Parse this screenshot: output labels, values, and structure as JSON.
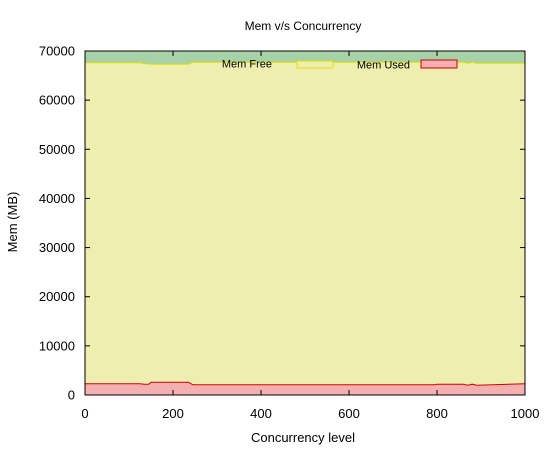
{
  "chart_data": {
    "type": "area",
    "title": "Mem v/s Concurrency",
    "xlabel": "Concurrency level",
    "ylabel": "Mem (MB)",
    "xlim": [
      0,
      1000
    ],
    "ylim": [
      0,
      70000
    ],
    "x_ticks": [
      "0",
      "200",
      "400",
      "600",
      "800",
      "1000"
    ],
    "y_ticks": [
      "0",
      "10000",
      "20000",
      "30000",
      "40000",
      "50000",
      "60000",
      "70000"
    ],
    "legend_position": "top-right",
    "grid": false,
    "colors": {
      "total_fill": "#a7d1a7",
      "free_fill": "#eeeeb0",
      "free_stroke": "#e0e000",
      "used_fill": "#f4b0b0",
      "used_stroke": "#d00000"
    },
    "x": [
      0,
      125,
      135,
      145,
      150,
      235,
      245,
      490,
      570,
      795,
      800,
      860,
      870,
      880,
      890,
      1000
    ],
    "series": [
      {
        "key": "total",
        "values": [
          70000,
          70000,
          70000,
          70000,
          70000,
          70000,
          70000,
          70000,
          70000,
          70000,
          70000,
          70000,
          70000,
          70000,
          70000,
          70000
        ]
      },
      {
        "key": "free_top",
        "values": [
          67600,
          67600,
          67400,
          67400,
          67300,
          67300,
          67700,
          67700,
          67700,
          67700,
          67700,
          67700,
          67500,
          67700,
          67500,
          67500
        ]
      },
      {
        "key": "used",
        "name": "Mem Used",
        "values": [
          2300,
          2300,
          2200,
          2200,
          2600,
          2600,
          2100,
          2100,
          2100,
          2100,
          2200,
          2200,
          2000,
          2200,
          2000,
          2300
        ]
      }
    ],
    "legend": [
      {
        "key": "free",
        "name": "Mem Free"
      },
      {
        "key": "used",
        "name": "Mem Used"
      }
    ]
  }
}
